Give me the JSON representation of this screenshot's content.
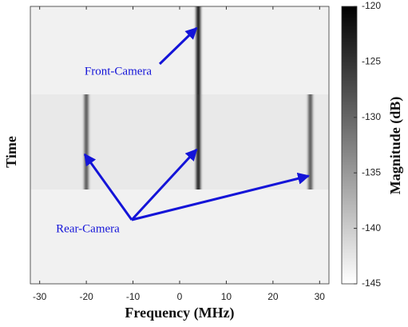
{
  "chart_data": {
    "type": "spectrogram",
    "x_label": "Frequency (MHz)",
    "y_label": "Time",
    "colorbar_label": "Magnitude (dB)",
    "xlim": [
      -32,
      32
    ],
    "xticks": [
      -30,
      -20,
      -10,
      0,
      10,
      20,
      30
    ],
    "clim": [
      -145,
      -120
    ],
    "cticks": [
      -145,
      -140,
      -135,
      -130,
      -125,
      -120
    ],
    "colormap": "gray-reversed",
    "series": [
      {
        "name": "Front-Camera",
        "color": "#1414d8",
        "frequencies": [
          4
        ],
        "magnitudes": [
          -121
        ]
      },
      {
        "name": "Rear-Camera",
        "color": "#1414d8",
        "frequencies": [
          -20,
          4,
          28
        ],
        "magnitudes": [
          -128,
          -122,
          -128
        ]
      }
    ]
  }
}
